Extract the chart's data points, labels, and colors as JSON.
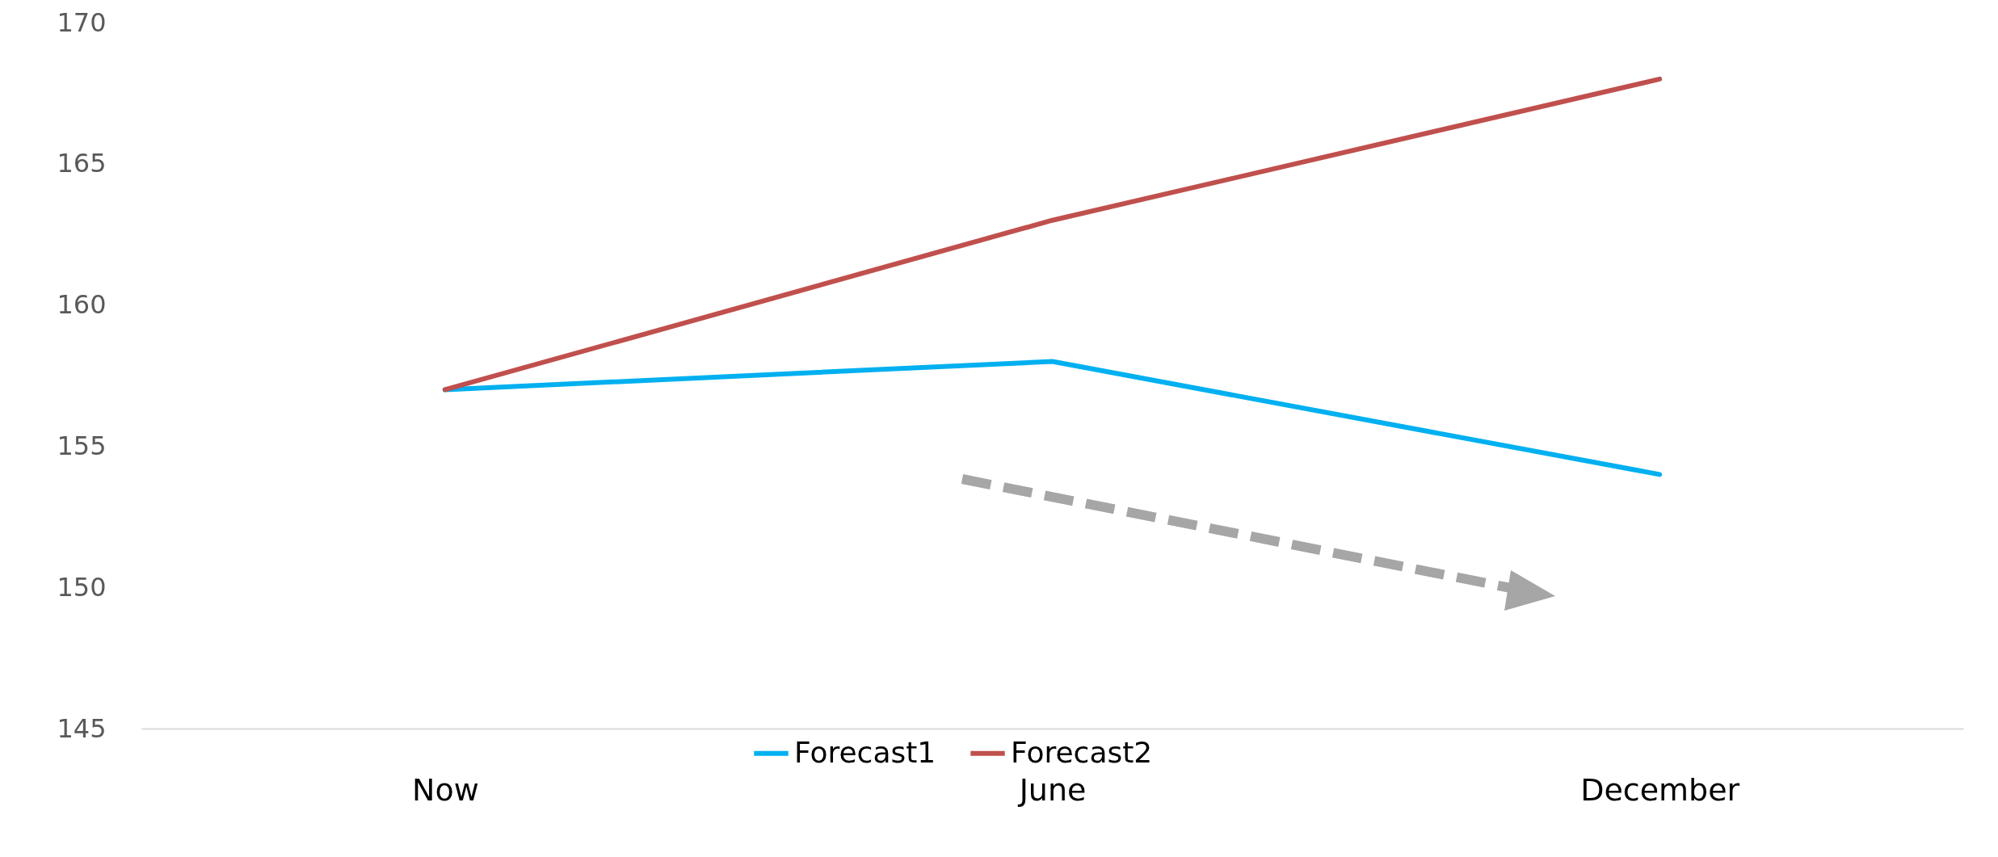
{
  "chart_data": {
    "type": "line",
    "categories": [
      "Now",
      "June",
      "December"
    ],
    "series": [
      {
        "name": "Forecast1",
        "color": "#00b0f0",
        "values": [
          157,
          158,
          154
        ]
      },
      {
        "name": "Forecast2",
        "color": "#c0504d",
        "values": [
          157,
          163,
          168
        ]
      }
    ],
    "ylim": [
      145,
      170
    ],
    "yticks": [
      145,
      150,
      155,
      160,
      165,
      170
    ],
    "grid": false,
    "legend": "bottom",
    "marker": "none",
    "line_style": "solid"
  }
}
